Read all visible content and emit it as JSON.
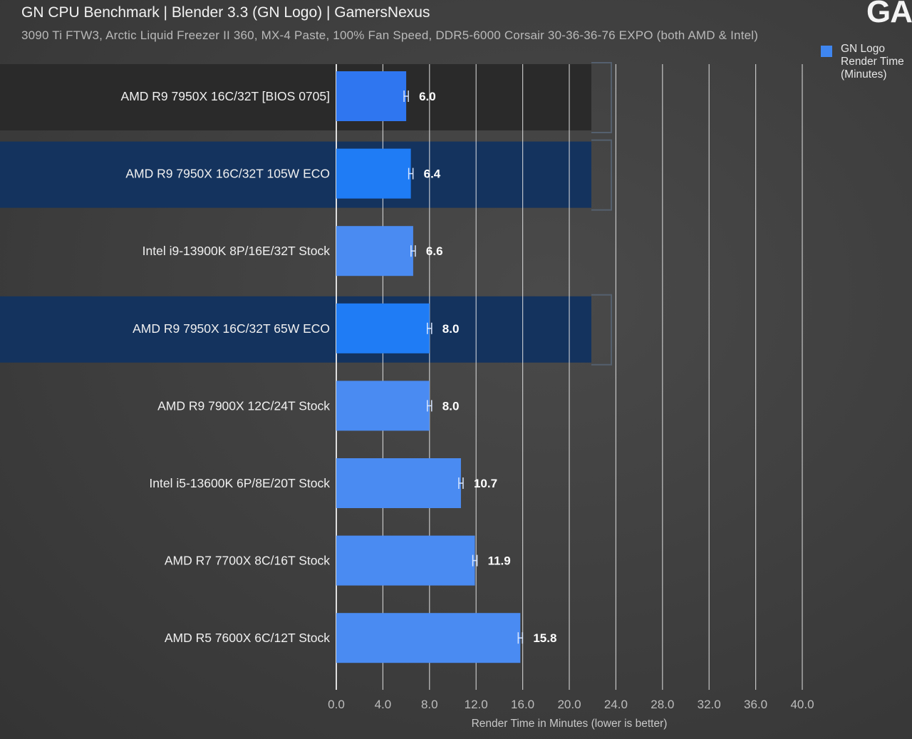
{
  "header": {
    "title": "GN CPU Benchmark | Blender 3.3 (GN Logo) | GamersNexus",
    "subtitle": "3090 Ti FTW3, Arctic Liquid Freezer II 360, MX-4 Paste, 100% Fan Speed, DDR5-6000 Corsair 30-36-36-76 EXPO (both AMD & Intel)",
    "logo": "GA"
  },
  "chart_data": {
    "type": "bar",
    "orientation": "horizontal",
    "categories": [
      "AMD R9 7950X 16C/32T [BIOS 0705]",
      "AMD R9 7950X 16C/32T 105W ECO",
      "Intel i9-13900K 8P/16E/32T Stock",
      "AMD R9 7950X 16C/32T 65W ECO",
      "AMD R9 7900X 12C/24T Stock",
      "Intel i5-13600K 6P/8E/20T Stock",
      "AMD R7 7700X 8C/16T Stock",
      "AMD R5 7600X 6C/12T Stock"
    ],
    "series": [
      {
        "name": "GN Logo Render Time (Minutes)",
        "values": [
          6.0,
          6.4,
          6.6,
          8.0,
          8.0,
          10.7,
          11.9,
          15.8
        ],
        "value_labels": [
          "6.0",
          "6.4",
          "6.6",
          "8.0",
          "8.0",
          "10.7",
          "11.9",
          "15.8"
        ]
      }
    ],
    "highlighted_rows": [
      0,
      1,
      3
    ],
    "xlabel": "Render Time in Minutes (lower is better)",
    "xlim": [
      0,
      40
    ],
    "xticks": [
      "0.0",
      "4.0",
      "8.0",
      "12.0",
      "16.0",
      "20.0",
      "24.0",
      "28.0",
      "32.0",
      "36.0",
      "40.0"
    ],
    "grid": true,
    "legend_position": "top-right",
    "colors": {
      "highlight_first": "#2f76f0",
      "highlight_eco": "#1f7cf5",
      "normal": "#4a8bf2",
      "row_dark": "#2a2a2a",
      "row_blue": "#14335e",
      "gridline": "#e8e8e8"
    }
  },
  "legend": {
    "label": "GN Logo\nRender Time\n(Minutes)"
  }
}
